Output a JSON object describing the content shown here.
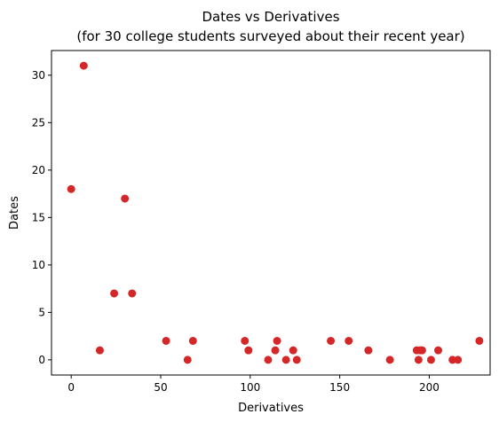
{
  "chart_data": {
    "type": "scatter",
    "title": "Dates vs Derivatives",
    "subtitle": "(for 30 college students surveyed about their recent year)",
    "xlabel": "Derivatives",
    "ylabel": "Dates",
    "xlim": [
      -11,
      234
    ],
    "ylim": [
      -1.6,
      32.6
    ],
    "x_ticks": [
      0,
      50,
      100,
      150,
      200
    ],
    "y_ticks": [
      0,
      5,
      10,
      15,
      20,
      25,
      30
    ],
    "grid": false,
    "legend": "none",
    "marker_color": "#d62728",
    "series": [
      {
        "points": [
          {
            "x": 0,
            "y": 18
          },
          {
            "x": 7,
            "y": 31
          },
          {
            "x": 16,
            "y": 1
          },
          {
            "x": 24,
            "y": 7
          },
          {
            "x": 30,
            "y": 17
          },
          {
            "x": 34,
            "y": 7
          },
          {
            "x": 53,
            "y": 2
          },
          {
            "x": 65,
            "y": 0
          },
          {
            "x": 68,
            "y": 2
          },
          {
            "x": 97,
            "y": 2
          },
          {
            "x": 99,
            "y": 1
          },
          {
            "x": 110,
            "y": 0
          },
          {
            "x": 114,
            "y": 1
          },
          {
            "x": 115,
            "y": 2
          },
          {
            "x": 120,
            "y": 0
          },
          {
            "x": 124,
            "y": 1
          },
          {
            "x": 126,
            "y": 0
          },
          {
            "x": 145,
            "y": 2
          },
          {
            "x": 155,
            "y": 2
          },
          {
            "x": 166,
            "y": 1
          },
          {
            "x": 178,
            "y": 0
          },
          {
            "x": 193,
            "y": 1
          },
          {
            "x": 194,
            "y": 0
          },
          {
            "x": 195,
            "y": 1
          },
          {
            "x": 201,
            "y": 0
          },
          {
            "x": 205,
            "y": 1
          },
          {
            "x": 213,
            "y": 0
          },
          {
            "x": 216,
            "y": 0
          },
          {
            "x": 228,
            "y": 2
          },
          {
            "x": 196,
            "y": 1
          }
        ]
      }
    ]
  }
}
